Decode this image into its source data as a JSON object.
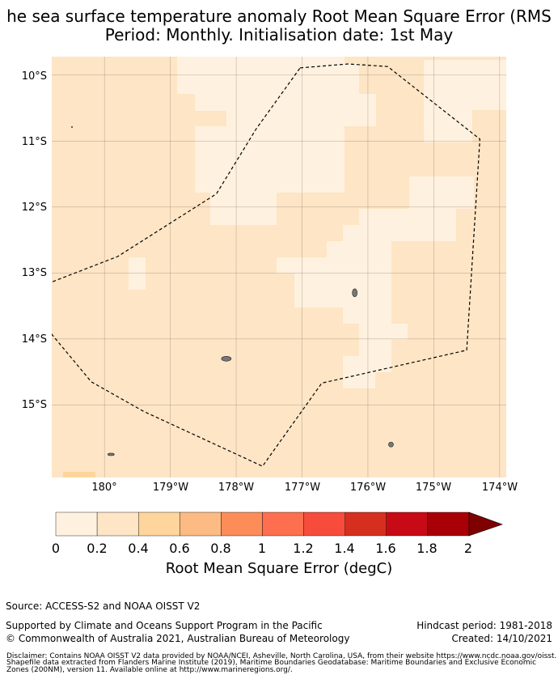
{
  "title": {
    "line1": "he sea surface temperature anomaly Root Mean Square Error (RMS",
    "line2": "Period: Monthly. Initialisation date: 1st May"
  },
  "map": {
    "lat_labels": [
      "10°S",
      "11°S",
      "12°S",
      "13°S",
      "14°S",
      "15°S"
    ],
    "lat_values": [
      -10,
      -11,
      -12,
      -13,
      -14,
      -15
    ],
    "lon_labels": [
      "180°",
      "179°W",
      "178°W",
      "177°W",
      "176°W",
      "175°W",
      "174°W"
    ],
    "lon_values": [
      180,
      181,
      182,
      183,
      184,
      185,
      186
    ],
    "lon_range": [
      179.2,
      186.1
    ],
    "lat_range": [
      -9.72,
      -16.1
    ],
    "boundary_color": "#000000",
    "zone_boundary": [
      [
        182.97,
        -9.89
      ],
      [
        183.7,
        -9.83
      ],
      [
        184.3,
        -9.87
      ],
      [
        185.7,
        -10.97
      ],
      [
        185.5,
        -14.17
      ],
      [
        183.3,
        -14.67
      ],
      [
        182.4,
        -15.93
      ],
      [
        180.6,
        -15.1
      ],
      [
        179.8,
        -14.65
      ],
      [
        178.7,
        -13.33
      ],
      [
        180.2,
        -12.75
      ],
      [
        181.7,
        -11.8
      ],
      [
        182.3,
        -10.82
      ],
      [
        182.97,
        -9.89
      ]
    ],
    "islands": [
      {
        "name": "Fakaofo",
        "lon": 183.8,
        "lat": -13.3
      },
      {
        "name": "Atafu",
        "lon": 181.85,
        "lat": -14.3
      },
      {
        "name": "Nukunonu",
        "lon": 184.35,
        "lat": -15.6
      },
      {
        "name": "south-west islet",
        "lon": 180.1,
        "lat": -15.75
      }
    ]
  },
  "colorbar": {
    "ticks": [
      "0",
      "0.2",
      "0.4",
      "0.6",
      "0.8",
      "1",
      "1.2",
      "1.4",
      "1.6",
      "1.8",
      "2"
    ],
    "colors": [
      "#fff1df",
      "#fde5c5",
      "#fed59c",
      "#fdbb84",
      "#fc8d59",
      "#fd6f4f",
      "#f74c3c",
      "#d62f1f",
      "#c70a15",
      "#a90008",
      "#7f0000"
    ],
    "label": "Root Mean Square Error (degC)"
  },
  "footer": {
    "source": "Source: ACCESS-S2 and NOAA OISST V2",
    "support": "Supported by Climate and Oceans Support Program in the Pacific",
    "copyright": "© Commonwealth of Australia 2021, Australian Bureau of Meteorology",
    "hindcast": "Hindcast period: 1981-2018",
    "created": "Created: 14/10/2021",
    "disclaimer1": "Disclaimer: Contains NOAA OISST V2 data provided by NOAA/NCEI, Asheville, North Carolina, USA, from their website https://www.ncdc.noaa.gov/oisst.",
    "disclaimer2": "Shapefile data extracted from Flanders Marine Institute (2019), Maritime Boundaries Geodatabase: Maritime Boundaries and Exclusive Economic",
    "disclaimer3": "Zones (200NM), version 11. Available online at http://www.marineregions.org/."
  }
}
